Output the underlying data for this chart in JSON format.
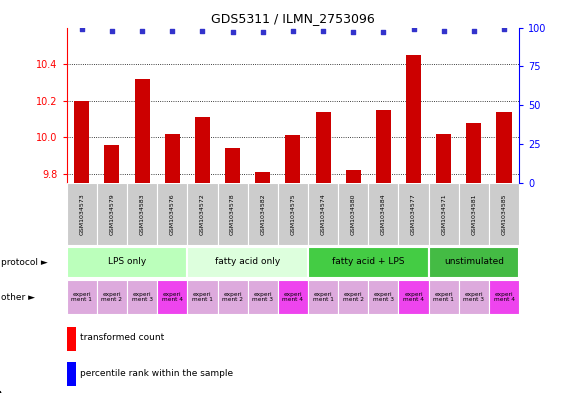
{
  "title": "GDS5311 / ILMN_2753096",
  "samples": [
    "GSM1034573",
    "GSM1034579",
    "GSM1034583",
    "GSM1034576",
    "GSM1034572",
    "GSM1034578",
    "GSM1034582",
    "GSM1034575",
    "GSM1034574",
    "GSM1034580",
    "GSM1034584",
    "GSM1034577",
    "GSM1034571",
    "GSM1034581",
    "GSM1034585"
  ],
  "bar_values": [
    10.2,
    9.96,
    10.32,
    10.02,
    10.11,
    9.94,
    9.81,
    10.01,
    10.14,
    9.82,
    10.15,
    10.45,
    10.02,
    10.08,
    10.14
  ],
  "dot_values": [
    99,
    98,
    98,
    98,
    98,
    97,
    97,
    98,
    98,
    97,
    97,
    99,
    98,
    98,
    99
  ],
  "ylim_left": [
    9.75,
    10.6
  ],
  "ylim_right": [
    0,
    100
  ],
  "yticks_left": [
    9.8,
    10.0,
    10.2,
    10.4
  ],
  "yticks_right": [
    0,
    25,
    50,
    75,
    100
  ],
  "bar_color": "#cc0000",
  "dot_color": "#3333cc",
  "groups": [
    {
      "label": "LPS only",
      "start": 0,
      "end": 4,
      "color": "#bbffbb"
    },
    {
      "label": "fatty acid only",
      "start": 4,
      "end": 8,
      "color": "#ddffdd"
    },
    {
      "label": "fatty acid + LPS",
      "start": 8,
      "end": 12,
      "color": "#44cc44"
    },
    {
      "label": "unstimulated",
      "start": 12,
      "end": 15,
      "color": "#44bb44"
    }
  ],
  "other_colors": [
    "#ddaadd",
    "#ddaadd",
    "#ddaadd",
    "#ee44ee",
    "#ddaadd",
    "#ddaadd",
    "#ddaadd",
    "#ee44ee",
    "#ddaadd",
    "#ddaadd",
    "#ddaadd",
    "#ee44ee",
    "#ddaadd",
    "#ddaadd",
    "#ee44ee"
  ],
  "other_labels": [
    "experi\nment 1",
    "experi\nment 2",
    "experi\nment 3",
    "experi\nment 4",
    "experi\nment 1",
    "experi\nment 2",
    "experi\nment 3",
    "experi\nment 4",
    "experi\nment 1",
    "experi\nment 2",
    "experi\nment 3",
    "experi\nment 4",
    "experi\nment 1",
    "experi\nment 3",
    "experi\nment 4"
  ],
  "sample_bg": "#cccccc",
  "protocol_label": "protocol",
  "other_label": "other",
  "legend_bar_label": "transformed count",
  "legend_dot_label": "percentile rank within the sample",
  "main_bg": "#ffffff"
}
